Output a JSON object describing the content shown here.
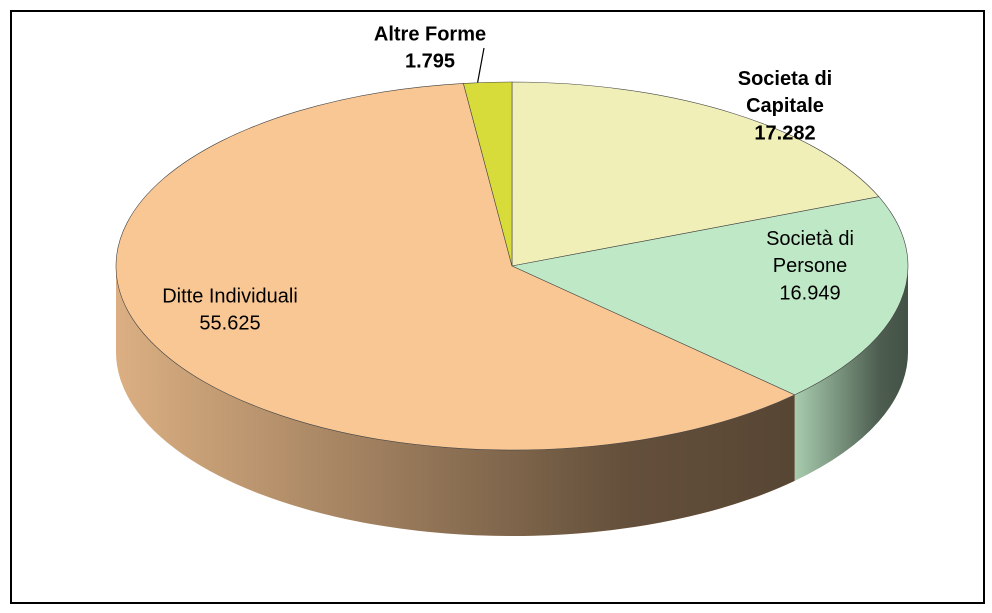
{
  "chart_data": {
    "type": "pie",
    "categories": [
      "Societa di Capitale",
      "Società di Persone",
      "Ditte Individuali",
      "Altre Forme"
    ],
    "values": [
      17282,
      16949,
      55625,
      1795
    ],
    "value_labels": [
      "17.282",
      "16.949",
      "55.625",
      "1.795"
    ],
    "colors": [
      "#f0efb8",
      "#bfe8c6",
      "#f9c794",
      "#d8dc3a"
    ]
  }
}
